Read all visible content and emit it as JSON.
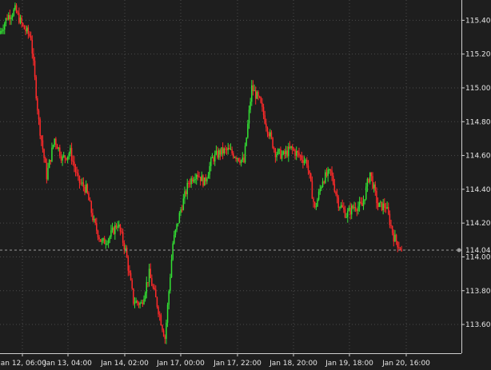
{
  "chart_data": {
    "type": "candlestick",
    "title": "",
    "xlabel": "",
    "ylabel": "",
    "ylim": [
      113.43,
      115.52
    ],
    "grid": true,
    "y_ticks": [
      113.6,
      113.8,
      114.0,
      114.2,
      114.4,
      114.6,
      114.8,
      115.0,
      115.2,
      115.4
    ],
    "y_tick_labels": [
      "113.60",
      "113.80",
      "114.00",
      "114.20",
      "114.40",
      "114.60",
      "114.80",
      "115.00",
      "115.20",
      "115.40"
    ],
    "x_tick_labels": [
      "Jan 12, 06:00",
      "Jan 13, 04:00",
      "Jan 14, 02:00",
      "Jan 17, 00:00",
      "Jan 17, 22:00",
      "Jan 18, 20:00",
      "Jan 19, 18:00",
      "Jan 20, 16:00"
    ],
    "current_price": 114.04,
    "current_price_label": "114.04",
    "colors": {
      "background": "#1e1e1e",
      "grid": "#4a4a4a",
      "axis": "#cfcfcf",
      "up": "#33e033",
      "down": "#ff2a2a",
      "price_line": "#9a9a9a",
      "text": "#e6e6e6"
    },
    "waypoints": [
      115.32,
      115.42,
      115.46,
      115.36,
      115.3,
      114.8,
      114.48,
      114.7,
      114.58,
      114.62,
      114.45,
      114.4,
      114.2,
      114.08,
      114.12,
      114.2,
      114.04,
      113.74,
      113.72,
      113.9,
      113.72,
      113.52,
      114.08,
      114.28,
      114.44,
      114.5,
      114.44,
      114.58,
      114.62,
      114.63,
      114.6,
      114.56,
      115.0,
      114.92,
      114.76,
      114.62,
      114.6,
      114.64,
      114.6,
      114.56,
      114.28,
      114.46,
      114.5,
      114.32,
      114.25,
      114.3,
      114.3,
      114.5,
      114.3,
      114.3,
      114.12,
      114.04
    ]
  }
}
